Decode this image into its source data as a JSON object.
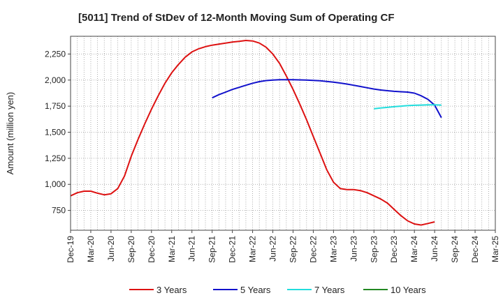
{
  "chart_data": {
    "type": "line",
    "title": "[5011]  Trend of StDev of 12-Month Moving Sum of Operating CF",
    "xlabel": "",
    "ylabel": "Amount (million yen)",
    "ylim": [
      560,
      2420
    ],
    "yticks": [
      750,
      1000,
      1250,
      1500,
      1750,
      2000,
      2250
    ],
    "ytick_labels": [
      "750",
      "1,000",
      "1,250",
      "1,500",
      "1,750",
      "2,000",
      "2,250"
    ],
    "xticks": [
      "Dec-19",
      "Mar-20",
      "Jun-20",
      "Sep-20",
      "Dec-20",
      "Mar-21",
      "Jun-21",
      "Sep-21",
      "Dec-21",
      "Mar-22",
      "Jun-22",
      "Sep-22",
      "Dec-22",
      "Mar-23",
      "Jun-23",
      "Sep-23",
      "Dec-23",
      "Mar-24",
      "Jun-24",
      "Sep-24",
      "Dec-24",
      "Mar-25"
    ],
    "grid": true,
    "legend_position": "bottom",
    "series": [
      {
        "name": "3 Years",
        "color": "#dd1111",
        "start_index": 0,
        "values": [
          890,
          920,
          935,
          935,
          915,
          900,
          910,
          960,
          1080,
          1270,
          1430,
          1580,
          1720,
          1850,
          1970,
          2070,
          2150,
          2220,
          2270,
          2300,
          2320,
          2335,
          2345,
          2355,
          2365,
          2372,
          2380,
          2375,
          2355,
          2315,
          2250,
          2160,
          2040,
          1910,
          1770,
          1620,
          1460,
          1300,
          1140,
          1020,
          960,
          950,
          950,
          940,
          920,
          890,
          860,
          820,
          760,
          700,
          650,
          620,
          610,
          625,
          640
        ]
      },
      {
        "name": "5 Years",
        "color": "#1111cc",
        "start_index": 21,
        "values": [
          1830,
          1860,
          1885,
          1910,
          1930,
          1950,
          1970,
          1985,
          1995,
          2000,
          2003,
          2004,
          2003,
          2002,
          2000,
          1997,
          1993,
          1987,
          1980,
          1972,
          1962,
          1950,
          1938,
          1926,
          1914,
          1905,
          1898,
          1892,
          1888,
          1885,
          1875,
          1850,
          1815,
          1760,
          1640
        ]
      },
      {
        "name": "7 Years",
        "color": "#22dddd",
        "start_index": 45,
        "values": [
          1725,
          1732,
          1738,
          1745,
          1750,
          1755,
          1758,
          1760,
          1762,
          1762,
          1760
        ]
      },
      {
        "name": "10 Years",
        "color": "#228822",
        "start_index": 0,
        "values": []
      }
    ]
  }
}
